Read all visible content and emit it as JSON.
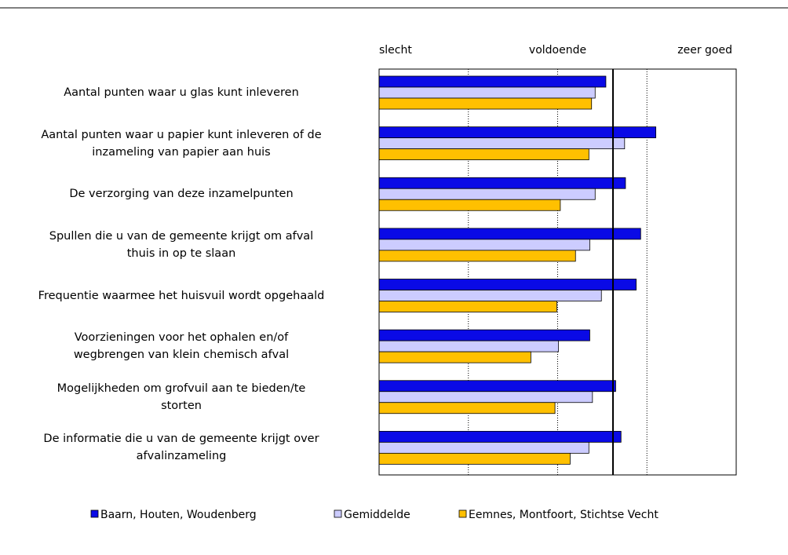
{
  "chart_data": {
    "type": "hbar",
    "categories": [
      "Aantal punten waar u glas kunt inleveren",
      "Aantal punten waar u papier kunt inleveren of de\ninzameling van papier aan huis",
      "De verzorging van deze inzamelpunten",
      "Spullen die u van de gemeente krijgt om afval\nthuis in op te slaan",
      "Frequentie waarmee het huisvuil wordt opgehaald",
      "Voorzieningen voor het ophalen en/of\nwegbrengen van klein chemisch afval",
      "Mogelijkheden om grofvuil aan te bieden/te\nstorten",
      "De informatie die u van de gemeente krijgt over\nafvalinzameling"
    ],
    "series": [
      {
        "name": "Baarn, Houten, Woudenberg",
        "color": "#0a0ae6",
        "values": [
          3.54,
          4.1,
          3.76,
          3.93,
          3.88,
          3.36,
          3.65,
          3.71
        ]
      },
      {
        "name": "Gemiddelde",
        "color": "#ccccff",
        "values": [
          3.42,
          3.75,
          3.42,
          3.36,
          3.49,
          3.01,
          3.39,
          3.35
        ]
      },
      {
        "name": "Eemnes, Montfoort, Stichtse Vecht",
        "color": "#ffc000",
        "values": [
          3.38,
          3.35,
          3.03,
          3.2,
          2.99,
          2.7,
          2.97,
          3.14
        ]
      }
    ],
    "xlim": [
      1,
      5
    ],
    "xticks": [
      {
        "value": 1,
        "label": "slecht"
      },
      {
        "value": 3,
        "label": "voldoende"
      },
      {
        "value": 5,
        "label": "zeer goed"
      }
    ],
    "grid_lines": [
      2,
      3,
      4
    ],
    "reference_line": 3.62,
    "legend": "bottom"
  }
}
